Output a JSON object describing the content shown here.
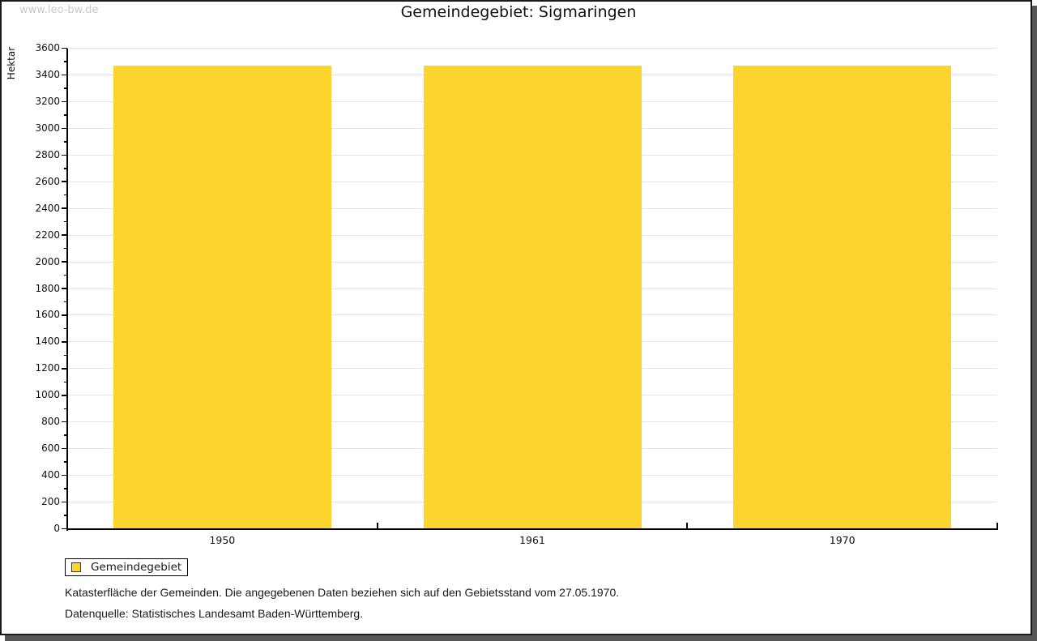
{
  "watermark": "www.leo-bw.de",
  "legend": {
    "label": "Gemeindegebiet"
  },
  "captions": [
    "Katasterfläche der Gemeinden. Die angegebenen Daten beziehen sich auf den Gebietsstand vom 27.05.1970.",
    "Datenquelle: Statistisches Landesamt Baden-Württemberg."
  ],
  "colors": {
    "bar": "#FCD42E",
    "gridline": "#E4E4E4",
    "axis": "#000000",
    "watermark": "#C9C9C9",
    "frame_border": "#1A1A1A",
    "frame_shadow": "#555555"
  },
  "chart_data": {
    "type": "bar",
    "title": "Gemeindegebiet: Sigmaringen",
    "categories": [
      "1950",
      "1961",
      "1970"
    ],
    "series": [
      {
        "name": "Gemeindegebiet",
        "values": [
          3470,
          3470,
          3470
        ]
      }
    ],
    "xlabel": "",
    "ylabel": "Hektar",
    "ylim": [
      0,
      3600
    ],
    "ytick_step": 200,
    "ytick_minor_step": 100,
    "grid": true,
    "legend_position": "bottom-left",
    "bar_color": "#FCD42E"
  }
}
